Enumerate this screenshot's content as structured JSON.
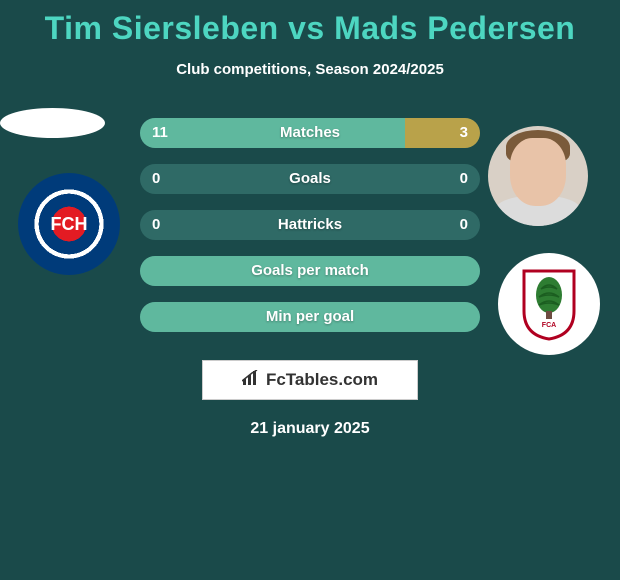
{
  "title": "Tim Siersleben vs Mads Pedersen",
  "subtitle": "Club competitions, Season 2024/2025",
  "date": "21 january 2025",
  "logo_text": "FcTables.com",
  "player_left": {
    "name": "Tim Siersleben",
    "club_text": "FCH"
  },
  "player_right": {
    "name": "Mads Pedersen",
    "club_text": "FCA"
  },
  "colors": {
    "background": "#1a4a4a",
    "title": "#4dd6c1",
    "bar_left": "#5fb89e",
    "bar_right": "#b9a24a",
    "bar_track": "#2f6a66",
    "text": "#ffffff"
  },
  "bars": [
    {
      "label": "Matches",
      "left_val": "11",
      "right_val": "3",
      "left_pct": 78,
      "right_pct": 22
    },
    {
      "label": "Goals",
      "left_val": "0",
      "right_val": "0",
      "left_pct": 0,
      "right_pct": 0
    },
    {
      "label": "Hattricks",
      "left_val": "0",
      "right_val": "0",
      "left_pct": 0,
      "right_pct": 0
    },
    {
      "label": "Goals per match",
      "left_val": "",
      "right_val": "",
      "left_pct": 100,
      "right_pct": 0
    },
    {
      "label": "Min per goal",
      "left_val": "",
      "right_val": "",
      "left_pct": 100,
      "right_pct": 0
    }
  ],
  "bar_style": {
    "height": 30,
    "gap": 16,
    "radius": 16,
    "label_fontsize": 15,
    "value_fontsize": 15
  }
}
